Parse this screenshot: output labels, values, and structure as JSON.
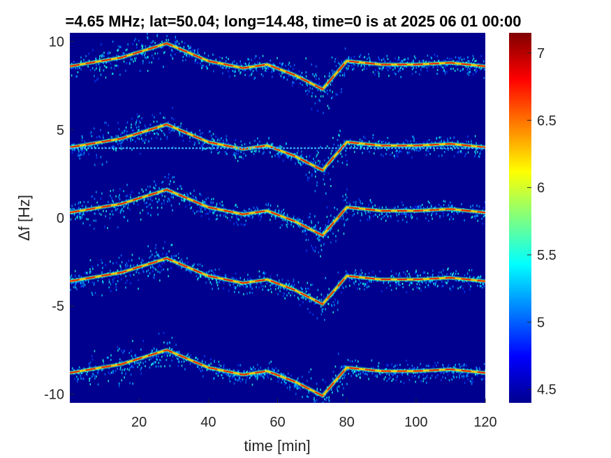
{
  "chart_data": {
    "type": "heatmap",
    "title": "=4.65 MHz;  lat=50.04; long=14.48, time=0 is at 2025 06 01 00:00",
    "xlabel": "time [min]",
    "ylabel": "Δf [Hz]",
    "xlim": [
      0,
      120
    ],
    "ylim": [
      -10.5,
      10.5
    ],
    "xticks": [
      20,
      40,
      60,
      80,
      100,
      120
    ],
    "xtick_labels": [
      "20",
      "40",
      "60",
      "80",
      "100",
      "120"
    ],
    "yticks": [
      10,
      5,
      0,
      -5,
      -10
    ],
    "ytick_labels": [
      "10",
      "5",
      "0",
      "-5",
      "-10"
    ],
    "colorbar": {
      "colormap": "jet",
      "range": [
        4.4,
        7.15
      ],
      "ticks": [
        7,
        6.5,
        6,
        5.5,
        5,
        4.5
      ],
      "tick_labels": [
        "7",
        "6.5",
        "6",
        "5.5",
        "5",
        "4.5"
      ]
    },
    "background_color": "#00008f",
    "trace_offsets_hz": [
      8.6,
      4.0,
      0.3,
      -3.6,
      -8.8
    ],
    "trace_anchor_minutes": [
      0,
      15,
      28,
      40,
      50,
      57,
      65,
      73,
      80,
      90,
      100,
      110,
      120
    ],
    "trace_shape_hz": [
      0,
      0.5,
      1.3,
      0.3,
      -0.1,
      0.1,
      -0.5,
      -1.3,
      0.3,
      0.1,
      0.1,
      0.2,
      0.0
    ],
    "horizontal_line_hz": 3.95
  }
}
